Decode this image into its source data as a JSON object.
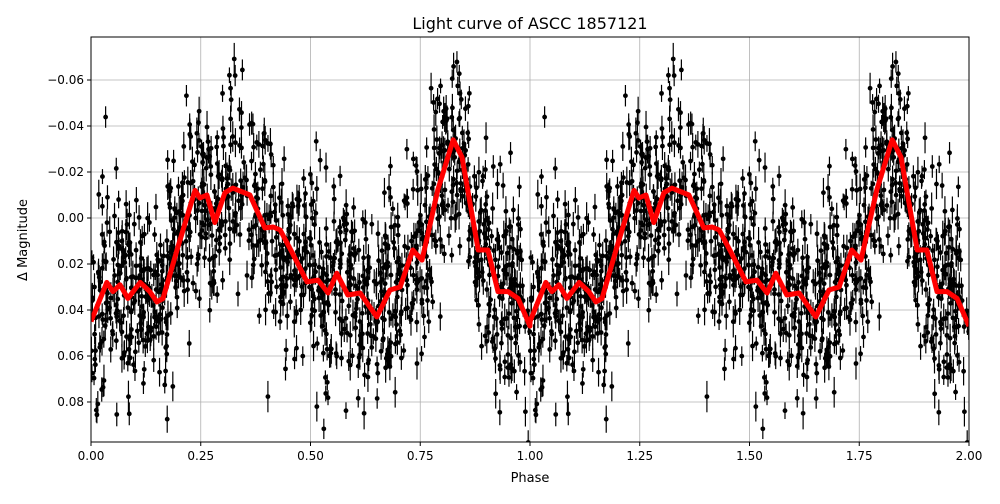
{
  "chart_data": {
    "type": "scatter",
    "title": "Light curve of ASCC 1857121",
    "xlabel": "Phase",
    "ylabel": "Δ Magnitude",
    "xlim": [
      0,
      2
    ],
    "ylim": [
      0.0974,
      -0.0787
    ],
    "y_inverted": true,
    "grid": true,
    "xticks": [
      0,
      0.25,
      0.5,
      0.75,
      1.0,
      1.25,
      1.5,
      1.75,
      2.0
    ],
    "xtick_labels": [
      "0.00",
      "0.25",
      "0.50",
      "0.75",
      "1.00",
      "1.25",
      "1.50",
      "1.75",
      "2.00"
    ],
    "yticks": [
      -0.06,
      -0.04,
      -0.02,
      0.0,
      0.02,
      0.04,
      0.06,
      0.08
    ],
    "ytick_labels": [
      "−0.06",
      "−0.04",
      "−0.02",
      "0.00",
      "0.02",
      "0.04",
      "0.06",
      "0.08"
    ],
    "series": [
      {
        "name": "observations",
        "kind": "errorbar-scatter",
        "color": "#000000",
        "count_per_cycle": 1300,
        "scatter_std": 0.022,
        "error_bar": 0.005,
        "repeated_over_two_cycles": true
      },
      {
        "name": "binned mean",
        "kind": "line",
        "color": "#ff0000",
        "phase": [
          0.0,
          0.036,
          0.05,
          0.066,
          0.084,
          0.112,
          0.134,
          0.15,
          0.164,
          0.198,
          0.237,
          0.248,
          0.264,
          0.282,
          0.305,
          0.323,
          0.362,
          0.396,
          0.415,
          0.431,
          0.458,
          0.492,
          0.517,
          0.54,
          0.56,
          0.585,
          0.613,
          0.651,
          0.681,
          0.704,
          0.733,
          0.754,
          0.79,
          0.825,
          0.845,
          0.882,
          0.904,
          0.927,
          0.95,
          0.973,
          1.0
        ],
        "magnitude": [
          0.045,
          0.028,
          0.032,
          0.029,
          0.035,
          0.028,
          0.032,
          0.0365,
          0.035,
          0.0126,
          -0.012,
          -0.0087,
          -0.01,
          0.002,
          -0.011,
          -0.013,
          -0.01,
          0.0043,
          0.0039,
          0.0052,
          0.015,
          0.0278,
          0.027,
          0.0326,
          0.024,
          0.0335,
          0.0326,
          0.043,
          0.0313,
          0.03,
          0.0139,
          0.0183,
          -0.0122,
          -0.034,
          -0.0265,
          0.0139,
          0.0139,
          0.032,
          0.032,
          0.035,
          0.047
        ]
      }
    ]
  }
}
